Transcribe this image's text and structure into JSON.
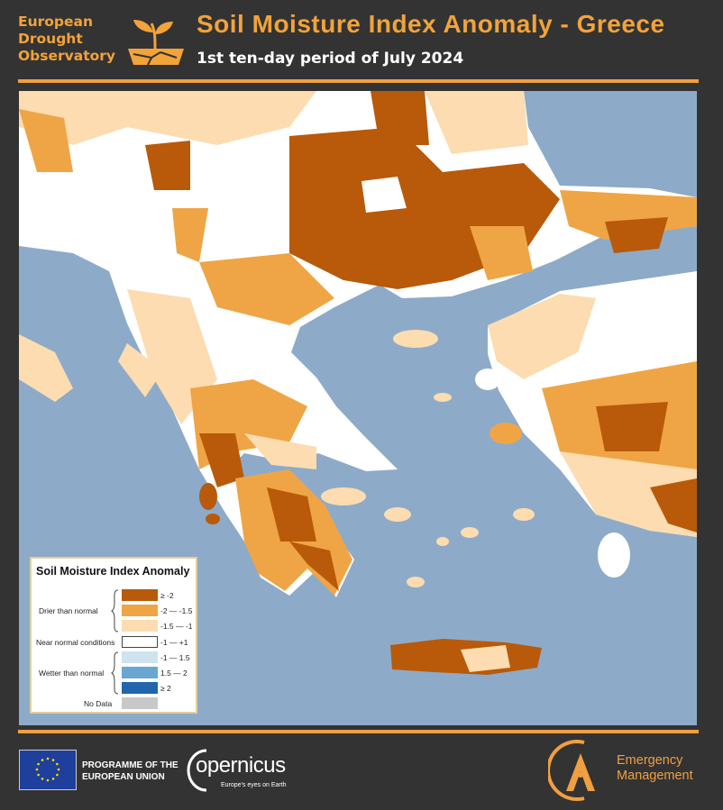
{
  "header": {
    "observatory_lines": [
      "European",
      "Drought",
      "Observatory"
    ],
    "title": "Soil Moisture Index Anomaly - Greece",
    "subtitle": "1st ten-day period of July 2024"
  },
  "colors": {
    "accent": "#f0a040",
    "sea": "#8dabc8",
    "background": "#333333"
  },
  "legend": {
    "title": "Soil Moisture Index Anomaly",
    "groups": {
      "drier": "Drier than normal",
      "normal": "Near normal conditions",
      "wetter": "Wetter than normal",
      "nodata": "No Data"
    },
    "classes": [
      {
        "label": "≥ -2",
        "color": "#b85a0a"
      },
      {
        "label": "-2 — -1.5",
        "color": "#efa545"
      },
      {
        "label": "-1.5 — -1",
        "color": "#fcdcb0"
      },
      {
        "label": "-1 — +1",
        "color": "#ffffff"
      },
      {
        "label": "-1 — 1.5",
        "color": "#cfe3ef"
      },
      {
        "label": "1.5 — 2",
        "color": "#6aa6d2"
      },
      {
        "label": "≥ 2",
        "color": "#2166ac"
      },
      {
        "label": "",
        "color": "#c8c8c8"
      }
    ]
  },
  "footer": {
    "programme_lines": [
      "PROGRAMME OF THE",
      "EUROPEAN UNION"
    ],
    "copernicus": "opernicus",
    "copernicus_tagline": "Europe's eyes on Earth",
    "emergency_lines": [
      "Emergency",
      "Management"
    ]
  }
}
